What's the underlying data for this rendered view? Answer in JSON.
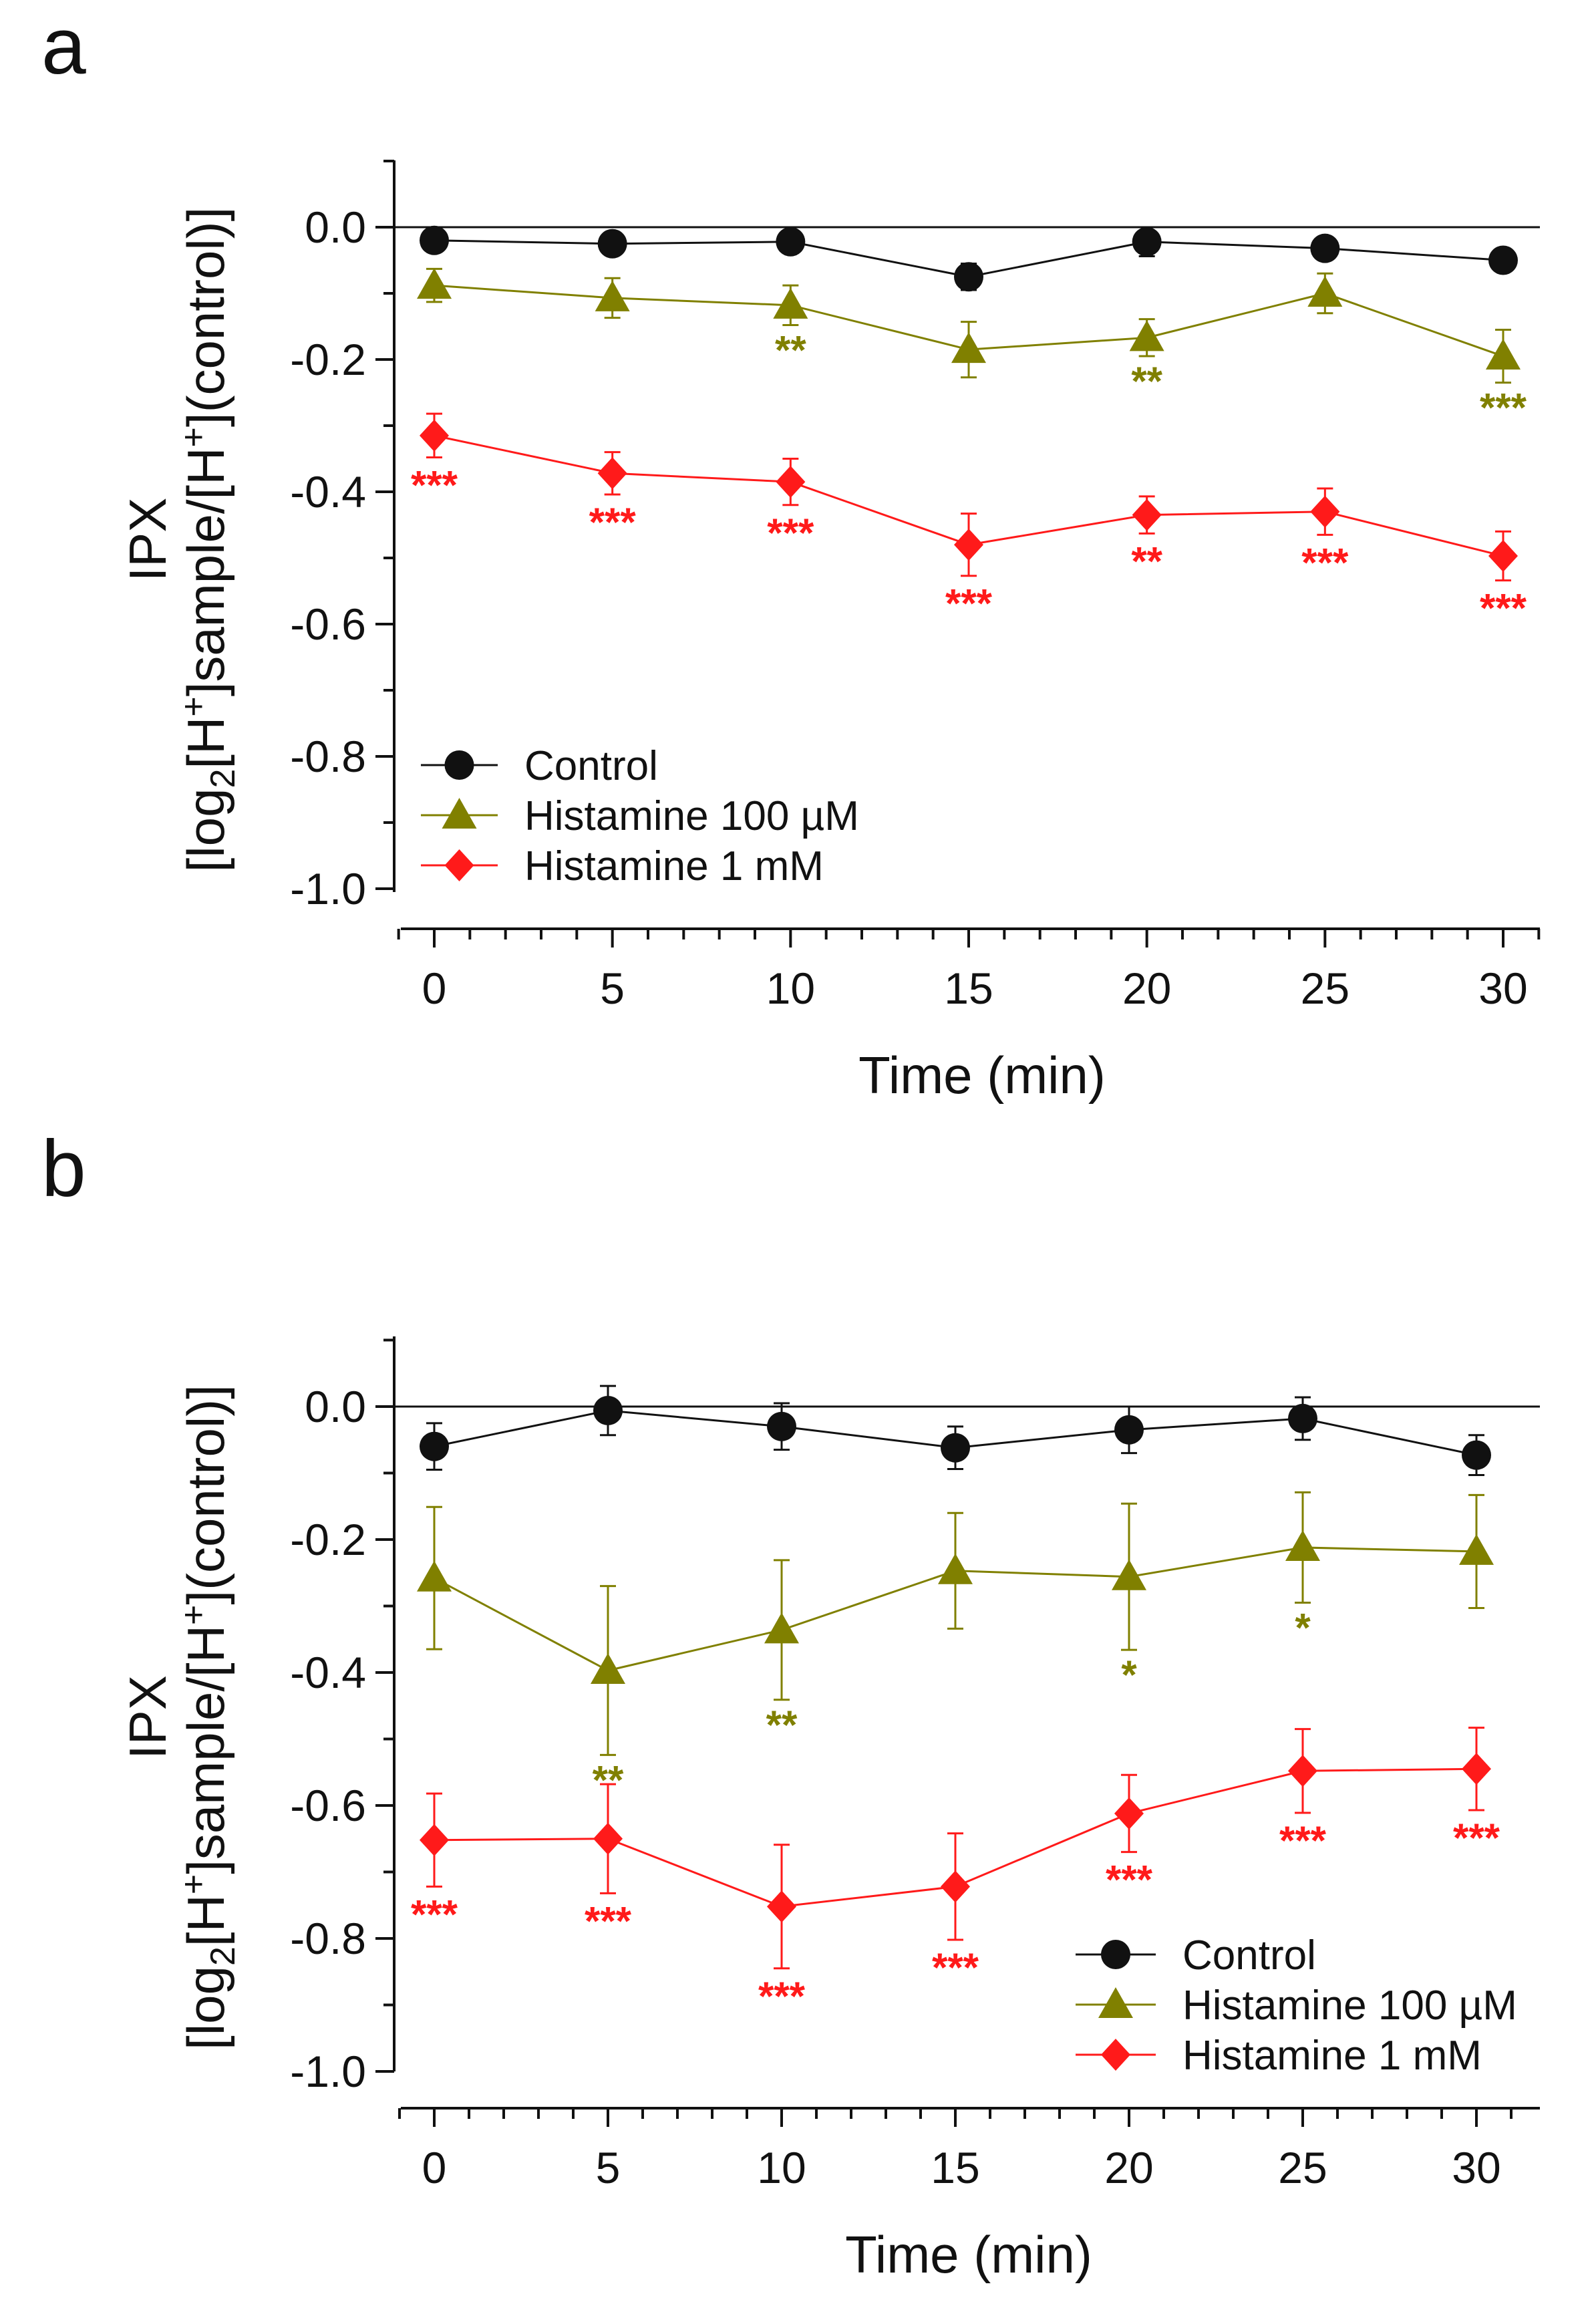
{
  "figure": {
    "panels": [
      "a",
      "b"
    ],
    "ylabel_line1": "IPX",
    "ylabel_line2": {
      "pre": "[log",
      "sub": "2",
      "mid1": "[H",
      "sup1": "+",
      "mid2": "]sample/[H",
      "sup2": "+",
      "post": "](control)]"
    },
    "colors": {
      "control": "#111111",
      "hist100": "#808000",
      "hist1": "#ff1a1a",
      "axis": "#111111"
    }
  },
  "chart_data": [
    {
      "panel": "a",
      "type": "line",
      "title": "",
      "xlabel": "Time (min)",
      "ylabel": "IPX [log2[H+]sample/[H+](control)]",
      "x": [
        0,
        5,
        10,
        15,
        20,
        25,
        30
      ],
      "xlim": [
        -1,
        31
      ],
      "ylim": [
        -1.0,
        0.1
      ],
      "xticks": [
        "0",
        "5",
        "10",
        "15",
        "20",
        "25",
        "30"
      ],
      "yticks": [
        "0.0",
        "-0.2",
        "-0.4",
        "-0.6",
        "-0.8",
        "-1.0"
      ],
      "legend_position": "bottom-left",
      "series": [
        {
          "name": "Control",
          "marker": "circle",
          "color": "#111111",
          "values": [
            -0.02,
            -0.025,
            -0.022,
            -0.075,
            -0.022,
            -0.032,
            -0.05
          ],
          "errors": [
            0.012,
            0.012,
            0.012,
            0.02,
            0.022,
            0.012,
            0.012
          ],
          "significance": [
            "",
            "",
            "",
            "",
            "",
            "",
            ""
          ]
        },
        {
          "name": "Histamine 100 µM",
          "marker": "triangle",
          "color": "#808000",
          "values": [
            -0.088,
            -0.107,
            -0.118,
            -0.185,
            -0.167,
            -0.1,
            -0.195
          ],
          "errors": [
            0.025,
            0.03,
            0.03,
            0.042,
            0.028,
            0.03,
            0.04
          ],
          "significance": [
            "",
            "",
            "**",
            "",
            "**",
            "",
            "***"
          ]
        },
        {
          "name": "Histamine 1 mM",
          "marker": "diamond",
          "color": "#ff1a1a",
          "values": [
            -0.315,
            -0.372,
            -0.385,
            -0.48,
            -0.435,
            -0.43,
            -0.497
          ],
          "errors": [
            0.033,
            0.032,
            0.035,
            0.047,
            0.028,
            0.035,
            0.037
          ],
          "significance": [
            "***",
            "***",
            "***",
            "***",
            "**",
            "***",
            "***"
          ]
        }
      ]
    },
    {
      "panel": "b",
      "type": "line",
      "title": "",
      "xlabel": "Time (min)",
      "ylabel": "IPX [log2[H+]sample/[H+](control)]",
      "x": [
        0,
        5,
        10,
        15,
        20,
        25,
        30
      ],
      "xlim": [
        -1,
        31
      ],
      "ylim": [
        -1.0,
        0.1
      ],
      "xticks": [
        "0",
        "5",
        "10",
        "15",
        "20",
        "25",
        "30"
      ],
      "yticks": [
        "0.0",
        "-0.2",
        "-0.4",
        "-0.6",
        "-0.8",
        "-1.0"
      ],
      "legend_position": "bottom-right",
      "series": [
        {
          "name": "Control",
          "marker": "circle",
          "color": "#111111",
          "values": [
            -0.06,
            -0.006,
            -0.03,
            -0.062,
            -0.035,
            -0.018,
            -0.073
          ],
          "errors": [
            0.035,
            0.037,
            0.035,
            0.032,
            0.035,
            0.032,
            0.03
          ],
          "significance": [
            "",
            "",
            "",
            "",
            "",
            "",
            ""
          ]
        },
        {
          "name": "Histamine 100 µM",
          "marker": "triangle",
          "color": "#808000",
          "values": [
            -0.258,
            -0.397,
            -0.336,
            -0.247,
            -0.256,
            -0.212,
            -0.218
          ],
          "errors": [
            0.107,
            0.127,
            0.105,
            0.087,
            0.11,
            0.083,
            0.085
          ],
          "significance": [
            "",
            "**",
            "**",
            "",
            "*",
            "*",
            ""
          ]
        },
        {
          "name": "Histamine 1 mM",
          "marker": "diamond",
          "color": "#ff1a1a",
          "values": [
            -0.652,
            -0.65,
            -0.752,
            -0.722,
            -0.612,
            -0.548,
            -0.545
          ],
          "errors": [
            0.07,
            0.082,
            0.093,
            0.08,
            0.058,
            0.063,
            0.062
          ],
          "significance": [
            "***",
            "***",
            "***",
            "***",
            "***",
            "***",
            "***"
          ]
        }
      ]
    }
  ]
}
